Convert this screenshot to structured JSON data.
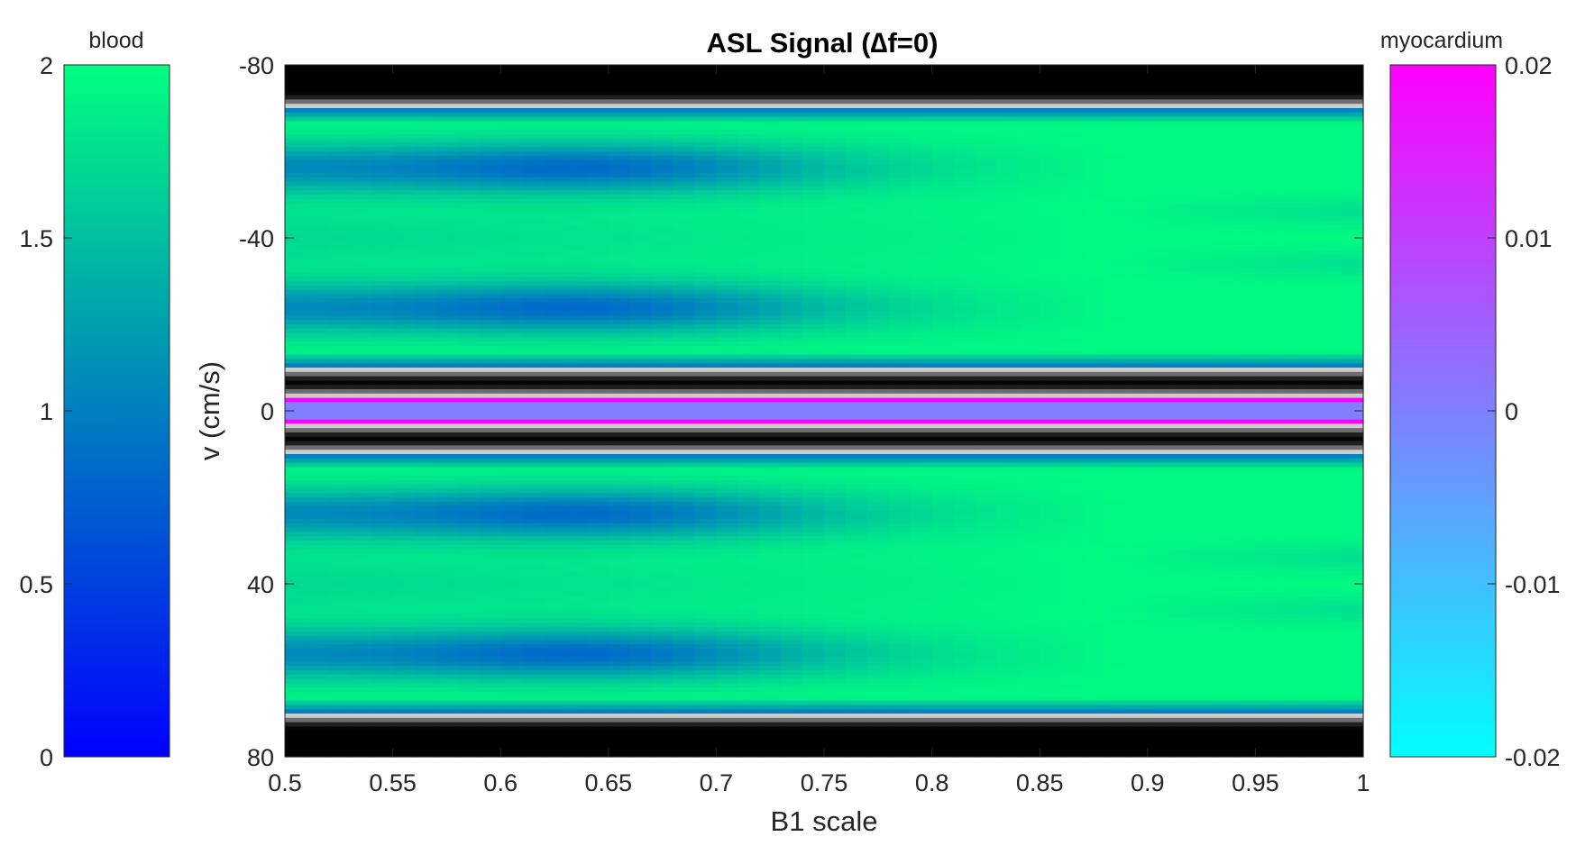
{
  "chart_data": {
    "type": "heatmap",
    "title": "ASL Signal (∆f=0)",
    "xlabel": "B1 scale",
    "ylabel": "v (cm/s)",
    "xlim": [
      0.5,
      1
    ],
    "ylim": [
      -80,
      80
    ],
    "y_reversed": true,
    "grid": false,
    "x_ticks": [
      "0.5",
      "0.55",
      "0.6",
      "0.65",
      "0.7",
      "0.75",
      "0.8",
      "0.85",
      "0.9",
      "0.95",
      "1"
    ],
    "y_ticks": [
      "-80",
      "-40",
      "0",
      "40",
      "80"
    ],
    "regions": [
      {
        "name": "blood",
        "v_abs_range": [
          10,
          70
        ],
        "colormap": "winter",
        "range": [
          0,
          2
        ]
      },
      {
        "name": "myocardium",
        "v_abs_range": [
          0,
          3
        ],
        "colormap": "cool",
        "range": [
          -0.02,
          0.02
        ]
      },
      {
        "name": "background",
        "colormap": "gray"
      }
    ],
    "colorbars": [
      {
        "label": "blood",
        "position": "left",
        "colormap": "winter",
        "range": [
          0,
          2
        ],
        "ticks": [
          "0",
          "0.5",
          "1",
          "1.5",
          "2"
        ],
        "colors": [
          "#0000ff",
          "#00ff80"
        ]
      },
      {
        "label": "myocardium",
        "position": "right",
        "colormap": "cool",
        "range": [
          -0.02,
          0.02
        ],
        "ticks": [
          "-0.02",
          "-0.01",
          "0",
          "0.01",
          "0.02"
        ],
        "colors": [
          "#00ffff",
          "#ff00ff"
        ]
      }
    ]
  }
}
